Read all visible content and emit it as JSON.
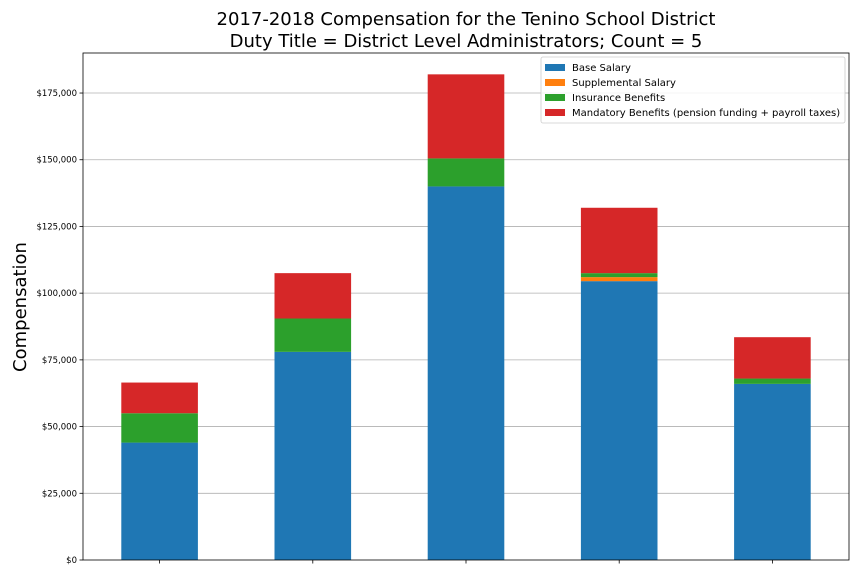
{
  "chart_data": {
    "type": "bar",
    "stacked": true,
    "title_line1": "2017-2018 Compensation for the Tenino School District",
    "title_line2": "Duty Title = District Level Administrators; Count = 5",
    "xlabel": "",
    "ylabel": "Compensation",
    "categories": [
      "",
      "",
      "",
      "",
      ""
    ],
    "ylim": [
      0,
      190000
    ],
    "yticks": [
      0,
      25000,
      50000,
      75000,
      100000,
      125000,
      150000,
      175000
    ],
    "ytick_labels": [
      "$0",
      "$25,000",
      "$50,000",
      "$75,000",
      "$100,000",
      "$125,000",
      "$150,000",
      "$175,000"
    ],
    "grid": "horizontal",
    "legend_position": "top-right",
    "series": [
      {
        "name": "Base Salary",
        "color": "#1f77b4",
        "values": [
          44000,
          78000,
          140000,
          104500,
          66000
        ]
      },
      {
        "name": "Supplemental Salary",
        "color": "#ff7f0e",
        "values": [
          0,
          0,
          0,
          1500,
          0
        ]
      },
      {
        "name": "Insurance Benefits",
        "color": "#2ca02c",
        "values": [
          11000,
          12500,
          10500,
          1500,
          2000
        ]
      },
      {
        "name": "Mandatory Benefits (pension funding + payroll taxes)",
        "color": "#d62728",
        "values": [
          11500,
          17000,
          31500,
          24500,
          15500
        ]
      }
    ]
  }
}
